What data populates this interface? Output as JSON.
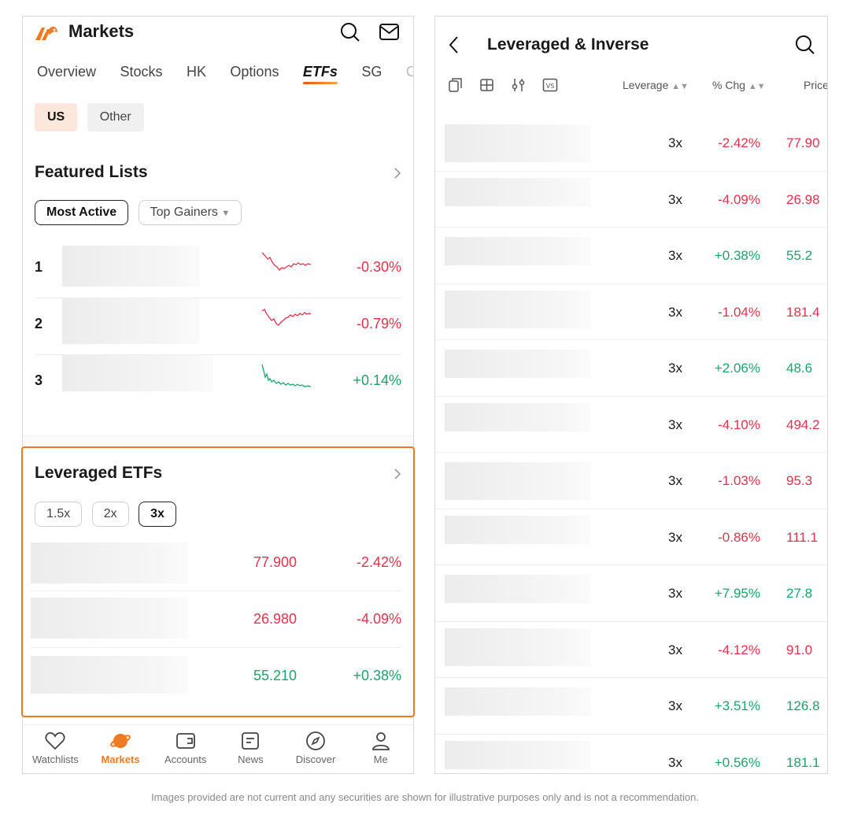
{
  "left_screen": {
    "header": {
      "title": "Markets"
    },
    "tabs": [
      "Overview",
      "Stocks",
      "HK",
      "Options",
      "ETFs",
      "SG",
      "CN"
    ],
    "active_tab": "ETFs",
    "region_chips": [
      "US",
      "Other"
    ],
    "featured": {
      "title": "Featured Lists",
      "filters": {
        "most_active": "Most Active",
        "top_gainers": "Top Gainers"
      },
      "rows": [
        {
          "rank": "1",
          "change": "-0.30%",
          "trend": "down"
        },
        {
          "rank": "2",
          "change": "-0.79%",
          "trend": "down"
        },
        {
          "rank": "3",
          "change": "+0.14%",
          "trend": "up"
        }
      ]
    },
    "leveraged": {
      "title": "Leveraged ETFs",
      "multipliers": [
        "1.5x",
        "2x",
        "3x"
      ],
      "active_multiplier": "3x",
      "rows": [
        {
          "price": "77.900",
          "change": "-2.42%",
          "trend": "down"
        },
        {
          "price": "26.980",
          "change": "-4.09%",
          "trend": "down"
        },
        {
          "price": "55.210",
          "change": "+0.38%",
          "trend": "up"
        }
      ]
    },
    "bottom_nav": [
      "Watchlists",
      "Markets",
      "Accounts",
      "News",
      "Discover",
      "Me"
    ],
    "active_nav": "Markets"
  },
  "right_screen": {
    "title": "Leveraged & Inverse",
    "columns": {
      "leverage": "Leverage",
      "change": "% Chg",
      "price": "Price"
    },
    "rows": [
      {
        "leverage": "3x",
        "change": "-2.42%",
        "price": "77.90",
        "trend": "down"
      },
      {
        "leverage": "3x",
        "change": "-4.09%",
        "price": "26.98",
        "trend": "down"
      },
      {
        "leverage": "3x",
        "change": "+0.38%",
        "price": "55.2",
        "trend": "up"
      },
      {
        "leverage": "3x",
        "change": "-1.04%",
        "price": "181.4",
        "trend": "down"
      },
      {
        "leverage": "3x",
        "change": "+2.06%",
        "price": "48.6",
        "trend": "up"
      },
      {
        "leverage": "3x",
        "change": "-4.10%",
        "price": "494.2",
        "trend": "down"
      },
      {
        "leverage": "3x",
        "change": "-1.03%",
        "price": "95.3",
        "trend": "down"
      },
      {
        "leverage": "3x",
        "change": "-0.86%",
        "price": "111.1",
        "trend": "down"
      },
      {
        "leverage": "3x",
        "change": "+7.95%",
        "price": "27.8",
        "trend": "up"
      },
      {
        "leverage": "3x",
        "change": "-4.12%",
        "price": "91.0",
        "trend": "down"
      },
      {
        "leverage": "3x",
        "change": "+3.51%",
        "price": "126.8",
        "trend": "up"
      },
      {
        "leverage": "3x",
        "change": "+0.56%",
        "price": "181.1",
        "trend": "up"
      }
    ]
  },
  "disclaimer": "Images provided are not current and any securities are shown for illustrative purposes only and is not a recommendation.",
  "colors": {
    "accent": "#ef7a23",
    "down": "#e0344b",
    "up": "#1ea36a"
  }
}
